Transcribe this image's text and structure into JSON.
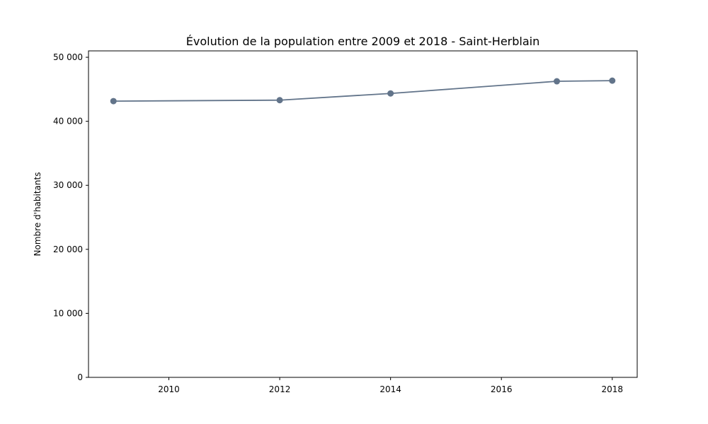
{
  "colors": {
    "series": "#62748a",
    "axis": "#000000",
    "background": "#ffffff"
  },
  "chart_data": {
    "type": "line",
    "title": "Évolution de la population entre 2009 et 2018 - Saint-Herblain",
    "xlabel": "",
    "ylabel": "Nombre d'habitants",
    "xlim": [
      2008.55,
      2018.45
    ],
    "ylim": [
      0,
      51000
    ],
    "grid": false,
    "x_ticks": [
      {
        "value": 2010,
        "label": "2010"
      },
      {
        "value": 2012,
        "label": "2012"
      },
      {
        "value": 2014,
        "label": "2014"
      },
      {
        "value": 2016,
        "label": "2016"
      },
      {
        "value": 2018,
        "label": "2018"
      }
    ],
    "y_ticks": [
      {
        "value": 0,
        "label": "0"
      },
      {
        "value": 10000,
        "label": "10 000"
      },
      {
        "value": 20000,
        "label": "20 000"
      },
      {
        "value": 30000,
        "label": "30 000"
      },
      {
        "value": 40000,
        "label": "40 000"
      },
      {
        "value": 50000,
        "label": "50 000"
      }
    ],
    "series": [
      {
        "x": [
          2009,
          2012,
          2014,
          2017,
          2018
        ],
        "values": [
          43150,
          43300,
          44350,
          46250,
          46350
        ],
        "marker": "circle"
      }
    ]
  }
}
